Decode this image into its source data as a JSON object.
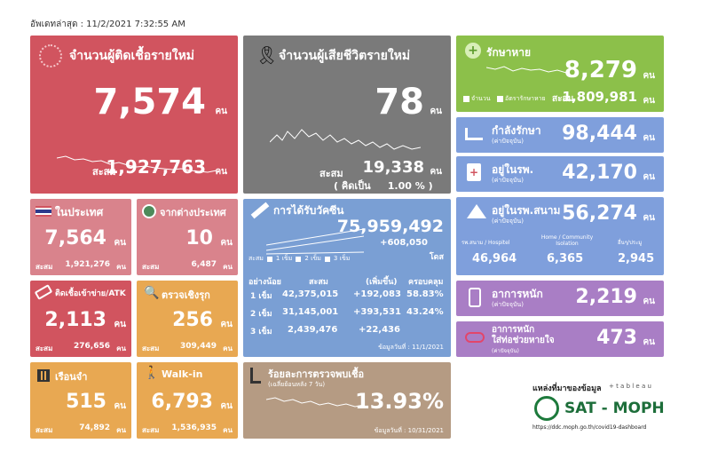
{
  "updated": "อัพเดทล่าสุด : 11/2/2021 7:32:55 AM",
  "unit": "คน",
  "new_cases": {
    "title": "จำนวนผู้ติดเชื้อรายใหม่",
    "value": "7,574",
    "cum_label": "สะสม",
    "cum": "1,927,763"
  },
  "new_deaths": {
    "title": "จำนวนผู้เสียชีวิตรายใหม่",
    "value": "78",
    "cum_label": "สะสม",
    "cum": "19,338",
    "pct": "( คิดเป็น     1.00 % )"
  },
  "recovered": {
    "title": "รักษาหาย",
    "value": "8,279",
    "legend_a": "จำนวน",
    "legend_b": "อัตรารักษาหาย",
    "cum_label": "สะสม",
    "cum": "1,809,981"
  },
  "in_treatment": {
    "title": "กำลังรักษา",
    "sub": "(ค่าปัจจุบัน)",
    "value": "98,444"
  },
  "in_hospital": {
    "title": "อยู่ในรพ.",
    "sub": "(ค่าปัจจุบัน)",
    "value": "42,170"
  },
  "field_hospital": {
    "title": "อยู่ในรพ.สนาม",
    "sub": "(ค่าปัจจุบัน)",
    "value": "56,274",
    "col1_label": "รพ.สนาม / Hospitel",
    "col1": "46,964",
    "col2_label": "Home / Community Isolation",
    "col2": "6,365",
    "col3_label": "อื่นๆ/ประมู",
    "col3": "2,945"
  },
  "severe": {
    "title": "อาการหนัก",
    "sub": "(ค่าปัจจุบัน)",
    "value": "2,219"
  },
  "ventilator": {
    "title": "อาการหนัก",
    "title2": "ใส่ท่อช่วยหายใจ",
    "sub": "(ค่าปัจจุบัน)",
    "value": "473"
  },
  "domestic": {
    "title": "ในประเทศ",
    "value": "7,564",
    "cum_label": "สะสม",
    "cum": "1,921,276"
  },
  "abroad": {
    "title": "จากต่างประเทศ",
    "value": "10",
    "cum_label": "สะสม",
    "cum": "6,487"
  },
  "prison_atk": {
    "title": "ติดเชื้อเข้าข่าย/ATK",
    "value": "2,113",
    "cum_label": "สะสม",
    "cum": "276,656"
  },
  "active_search": {
    "title": "ตรวจเชิงรุก",
    "value": "256",
    "cum_label": "สะสม",
    "cum": "309,449"
  },
  "prison": {
    "title": "เรือนจำ",
    "value": "515",
    "cum_label": "สะสม",
    "cum": "74,892"
  },
  "walkin": {
    "title": "Walk-in",
    "value": "6,793",
    "cum_label": "สะสม",
    "cum": "1,536,935"
  },
  "vaccine": {
    "title": "การได้รับวัคซีน",
    "total": "75,959,492",
    "increase": "+608,050",
    "dose_unit": "โดส",
    "legend": [
      "สะสม",
      "1 เข็ม",
      "2 เข็ม",
      "3 เข็ม"
    ],
    "headers": [
      "อย่างน้อย",
      "สะสม",
      "(เพิ่มขึ้น)",
      "ครอบคลุม"
    ],
    "rows": [
      [
        "1 เข็ม",
        "42,375,015",
        "+192,083",
        "58.83%"
      ],
      [
        "2 เข็ม",
        "31,145,001",
        "+393,531",
        "43.24%"
      ],
      [
        "3 เข็ม",
        "2,439,476",
        "+22,436",
        ""
      ]
    ],
    "note": "ข้อมูลวันที่ : 11/1/2021"
  },
  "positivity": {
    "title": "ร้อยละการตรวจพบเชื้อ",
    "sub": "(เฉลี่ยย้อนหลัง 7 วัน)",
    "value": "13.93%",
    "note": "ข้อมูลวันที่ : 10/31/2021"
  },
  "source": {
    "label": "แหล่งที่มาของข้อมูล",
    "tableau": "+ t a b l e a u",
    "org": "SAT - MOPH",
    "url": "https://ddc.moph.go.th/covid19-dashboard"
  },
  "colors": {
    "red": "#d1545f",
    "gray": "#7a7a7a",
    "green": "#8cc04a",
    "blue": "#7f9fdc",
    "purple": "#a97ec5",
    "pink": "#d9838c",
    "orange": "#e8a852",
    "steel": "#7a9fd4",
    "tan": "#b59b83"
  }
}
